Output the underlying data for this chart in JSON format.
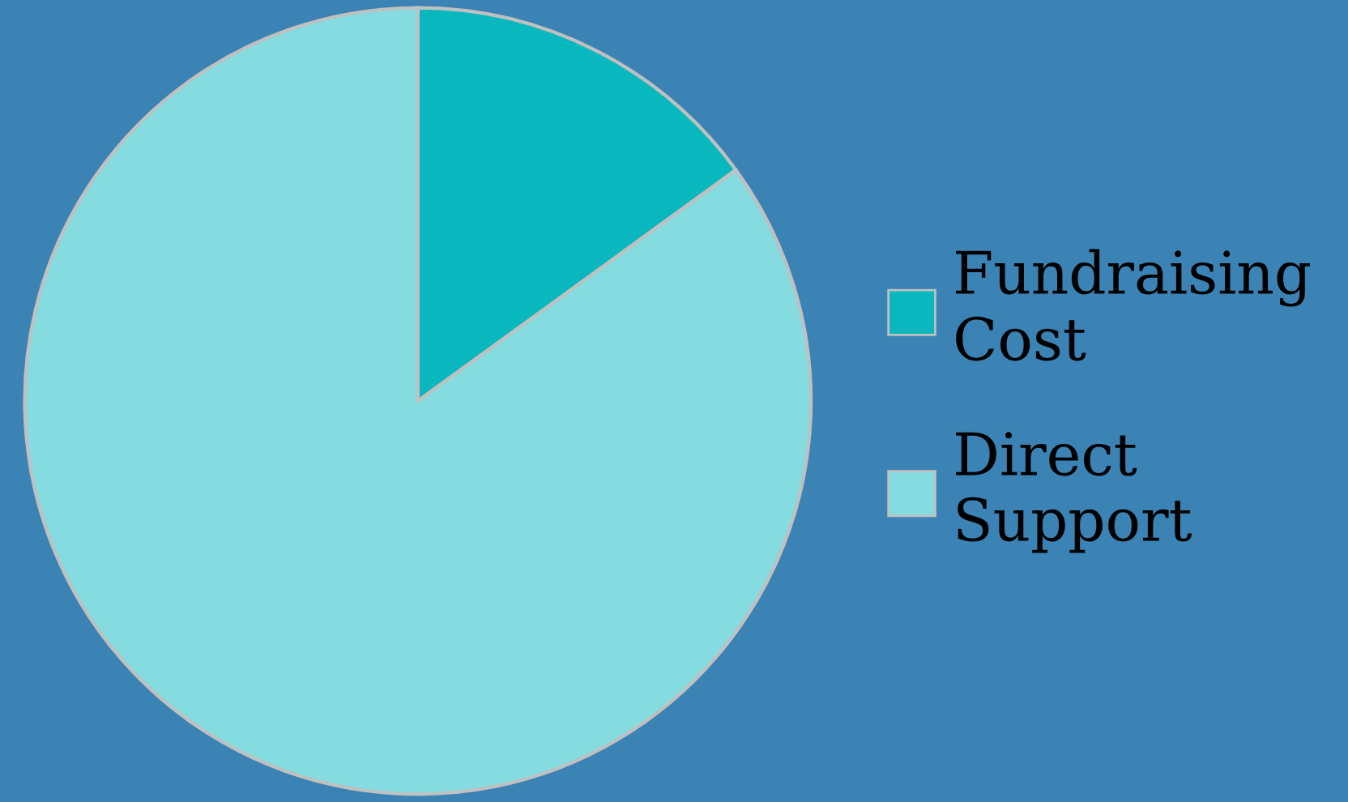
{
  "chart_data": {
    "type": "pie",
    "categories": [
      "Fundraising Cost",
      "Direct Support"
    ],
    "values": [
      15,
      85
    ],
    "colors": [
      "#09b8bf",
      "#84dbe0"
    ],
    "legend": "right"
  }
}
